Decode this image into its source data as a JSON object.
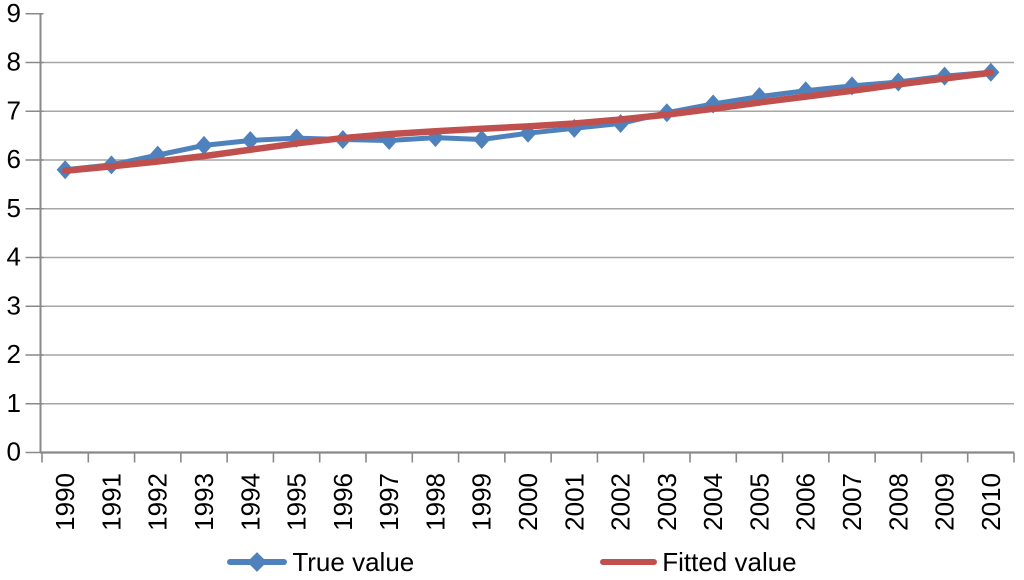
{
  "chart_data": {
    "type": "line",
    "title": "",
    "xlabel": "",
    "ylabel": "",
    "categories": [
      "1990",
      "1991",
      "1992",
      "1993",
      "1994",
      "1995",
      "1996",
      "1997",
      "1998",
      "1999",
      "2000",
      "2001",
      "2002",
      "2003",
      "2004",
      "2005",
      "2006",
      "2007",
      "2008",
      "2009",
      "2010"
    ],
    "y_ticks": [
      "0",
      "1",
      "2",
      "3",
      "4",
      "5",
      "6",
      "7",
      "8",
      "9"
    ],
    "ylim": [
      0,
      9
    ],
    "grid": true,
    "legend_position": "bottom",
    "series": [
      {
        "name": "True value",
        "color": "#4F81BD",
        "marker": "diamond",
        "values": [
          5.8,
          5.9,
          6.1,
          6.3,
          6.4,
          6.45,
          6.42,
          6.4,
          6.46,
          6.42,
          6.55,
          6.65,
          6.75,
          6.97,
          7.15,
          7.3,
          7.42,
          7.52,
          7.6,
          7.72,
          7.8
        ]
      },
      {
        "name": "Fitted value",
        "color": "#C0504D",
        "marker": "none",
        "values": [
          5.78,
          5.87,
          5.97,
          6.08,
          6.21,
          6.34,
          6.45,
          6.53,
          6.59,
          6.64,
          6.69,
          6.75,
          6.83,
          6.93,
          7.05,
          7.18,
          7.3,
          7.42,
          7.55,
          7.67,
          7.79
        ]
      }
    ],
    "gridline_color": "#A6A6A6",
    "axis_color": "#898989",
    "text_color": "#000000",
    "background_color": "#FFFFFF"
  }
}
